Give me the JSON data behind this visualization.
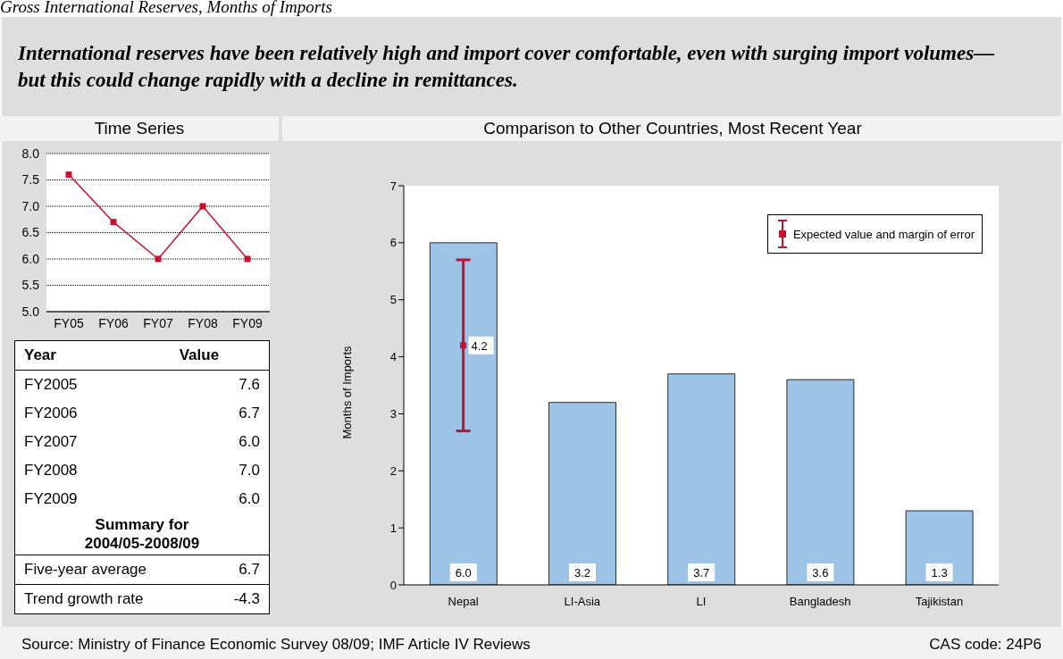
{
  "chart_data": [
    {
      "type": "other",
      "title": "Gross International Reserves, Months of Imports",
      "subtitle": "International reserves have been relatively high and import cover comfortable, even with surging import volumes—but this could change rapidly with a decline in remittances."
    },
    {
      "type": "line",
      "title": "Time Series",
      "categories": [
        "FY05",
        "FY06",
        "FY07",
        "FY08",
        "FY09"
      ],
      "series": [
        {
          "color": "#c8102e",
          "values": [
            7.6,
            6.7,
            6.0,
            7.0,
            6.0
          ]
        }
      ],
      "ylim": [
        5,
        8
      ],
      "yticks": [
        {
          "value": 5,
          "label": "5.0"
        },
        {
          "value": 5.5,
          "label": "5.5"
        },
        {
          "value": 6,
          "label": "6.0"
        },
        {
          "value": 6.5,
          "label": "6.5"
        },
        {
          "value": 7,
          "label": "7.0"
        },
        {
          "value": 7.5,
          "label": "7.5"
        },
        {
          "value": 8,
          "label": "8.0"
        }
      ],
      "grid": "y",
      "marker": "square"
    },
    {
      "type": "other",
      "annotations": [
        "Year",
        "Value",
        "FY2005",
        "7.6",
        "FY2006",
        "6.7",
        "FY2007",
        "6.0",
        "FY2008",
        "7.0",
        "FY2009",
        "6.0",
        "Summary for 2004/05-2008/09",
        "Five-year average",
        "6.7",
        "Trend growth rate",
        "-4.3"
      ]
    },
    {
      "type": "bar",
      "title": "Comparison to Other Countries, Most Recent Year",
      "categories": [
        "Nepal",
        "LI-Asia",
        "LI",
        "Bangladesh",
        "Tajikistan"
      ],
      "series": [
        {
          "type": "bar",
          "color": "#9dc3e6",
          "values": [
            6.0,
            3.2,
            3.7,
            3.6,
            1.3
          ],
          "value_labels": [
            "6.0",
            "3.2",
            "3.7",
            "3.6",
            "1.3"
          ]
        },
        {
          "type": "scatter",
          "name": "Expected value and margin of error",
          "color": "#c8102e",
          "x": [
            "Nepal"
          ],
          "values": [
            4.2
          ],
          "errors": [
            [
              2.7,
              5.7
            ]
          ],
          "value_labels": [
            "4.2"
          ]
        }
      ],
      "ylim": [
        0,
        7
      ],
      "yticks": [
        0,
        1,
        2,
        3,
        4,
        5,
        6,
        7
      ],
      "ylabel": "Months of Imports",
      "legend": "top right",
      "marker": "square"
    },
    {
      "type": "other",
      "annotations": [
        "Source: Ministry of Finance Economic Survey 08/09; IMF Article IV Reviews",
        "CAS code: 24P6"
      ]
    }
  ]
}
